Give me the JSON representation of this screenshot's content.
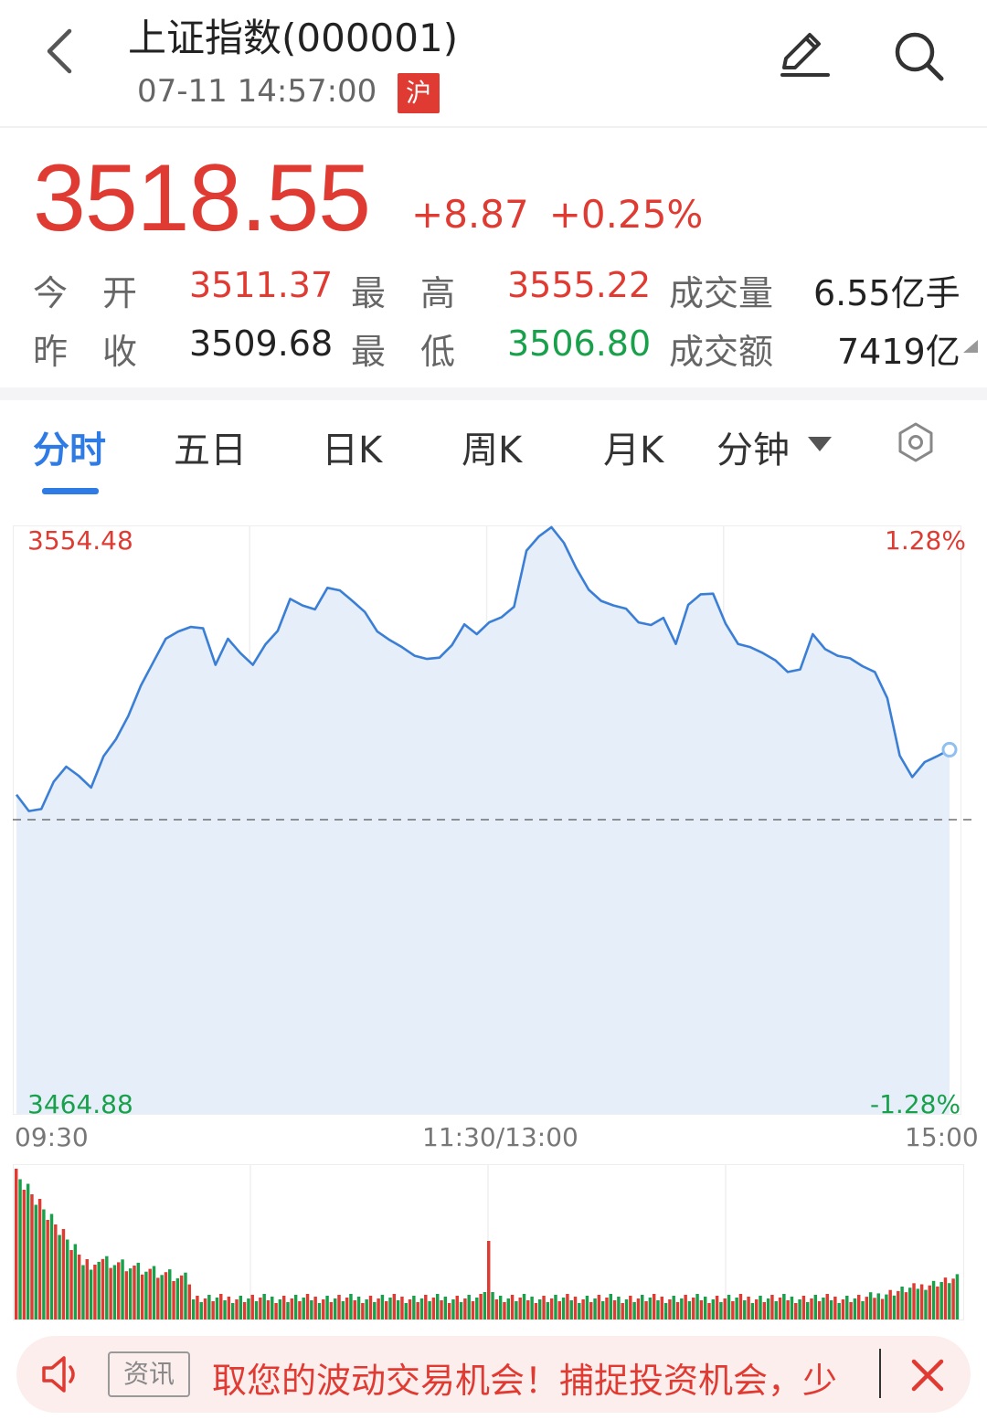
{
  "header": {
    "title": "上证指数(000001)",
    "datetime": "07-11 14:57:00",
    "market_badge": "沪"
  },
  "quote": {
    "price": "3518.55",
    "change": "+8.87",
    "change_pct": "+0.25%",
    "stats": {
      "open_label": "今　开",
      "open": "3511.37",
      "high_label": "最　高",
      "high": "3555.22",
      "volume_label": "成交量",
      "volume": "6.55亿手",
      "prev_close_label": "昨　收",
      "prev_close": "3509.68",
      "low_label": "最　低",
      "low": "3506.80",
      "amount_label": "成交额",
      "amount": "7419亿"
    }
  },
  "tabs": [
    {
      "label": "分时",
      "active": true
    },
    {
      "label": "五日"
    },
    {
      "label": "日K"
    },
    {
      "label": "周K"
    },
    {
      "label": "月K"
    },
    {
      "label": "分钟"
    }
  ],
  "chart": {
    "top_price": "3554.48",
    "bottom_price": "3464.88",
    "top_pct": "1.28%",
    "bottom_pct": "-1.28%",
    "time_start": "09:30",
    "time_mid": "11:30/13:00",
    "time_end": "15:00",
    "colors": {
      "line": "#3a7fd5",
      "fill": "#e6eefa",
      "up": "#e03b33",
      "down": "#18a04b"
    }
  },
  "chart_data": {
    "type": "line",
    "x_label_start": "09:30",
    "x_label_end": "15:00",
    "ylim": [
      3464.88,
      3554.48
    ],
    "baseline": 3509.68,
    "series": [
      {
        "values": [
          3513.5,
          3511.0,
          3511.3,
          3515.5,
          3517.8,
          3516.4,
          3514.6,
          3519.4,
          3522.0,
          3525.6,
          3530.2,
          3533.8,
          3537.4,
          3538.5,
          3539.2,
          3539.0,
          3533.4,
          3537.4,
          3535.2,
          3533.4,
          3536.5,
          3538.6,
          3543.5,
          3542.5,
          3541.9,
          3545.2,
          3544.8,
          3543.2,
          3541.5,
          3538.5,
          3537.2,
          3536.1,
          3534.8,
          3534.3,
          3534.5,
          3536.4,
          3539.6,
          3538.1,
          3539.9,
          3540.7,
          3542.3,
          3550.9,
          3553.1,
          3554.5,
          3552.1,
          3548.2,
          3544.9,
          3543.2,
          3542.5,
          3542.0,
          3539.9,
          3539.5,
          3540.6,
          3536.6,
          3542.6,
          3544.2,
          3544.3,
          3539.7,
          3536.6,
          3536.1,
          3535.2,
          3534.1,
          3532.3,
          3532.7,
          3538.1,
          3535.8,
          3534.8,
          3534.4,
          3533.2,
          3532.3,
          3528.3,
          3519.5,
          3516.2,
          3518.5,
          3519.4,
          3520.4
        ]
      }
    ],
    "volume_note": "bars in two colors, red/green alternating"
  },
  "ticker": {
    "tag": "资讯",
    "text": "取您的波动交易机会！捕捉投资机会，少"
  }
}
